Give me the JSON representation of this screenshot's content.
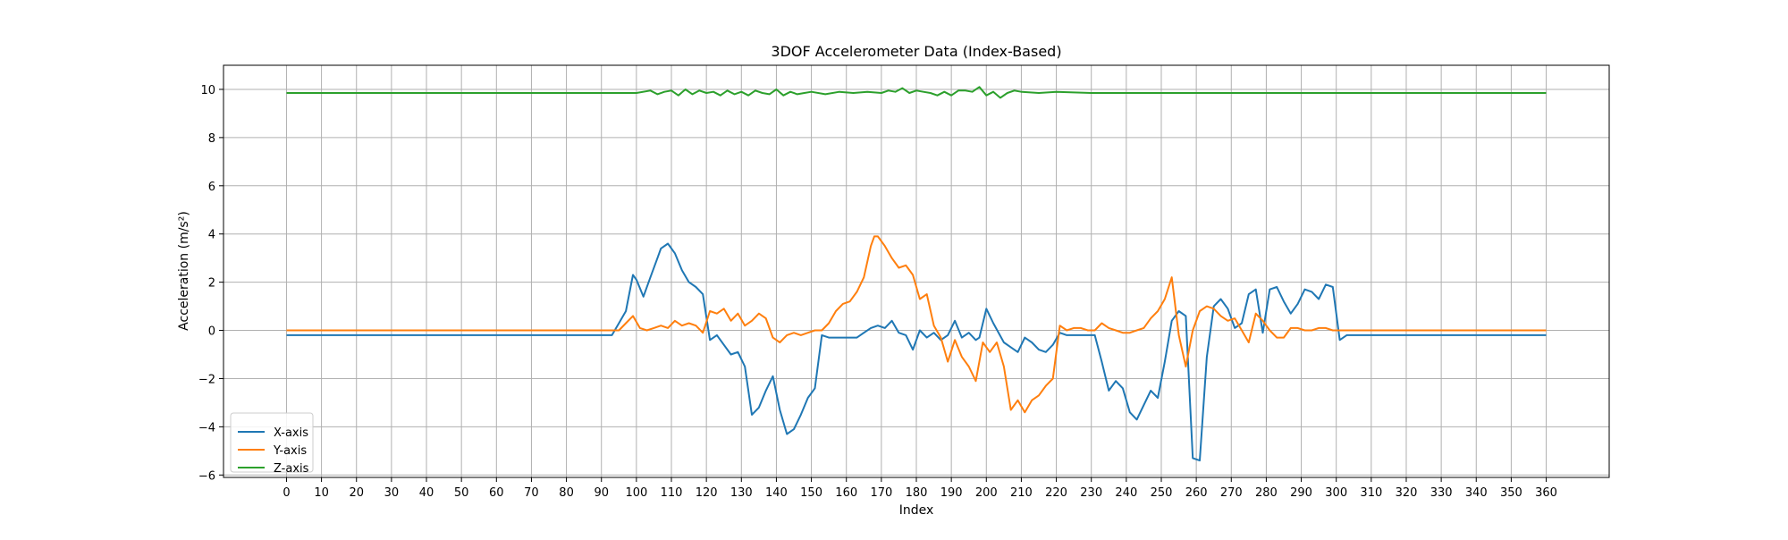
{
  "chart_data": {
    "type": "line",
    "title": "3DOF Accelerometer Data (Index-Based)",
    "xlabel": "Index",
    "ylabel": "Acceleration (m/s²)",
    "xlim": [
      -18,
      378
    ],
    "ylim": [
      -6.1,
      11.0
    ],
    "xticks": [
      0,
      10,
      20,
      30,
      40,
      50,
      60,
      70,
      80,
      90,
      100,
      110,
      120,
      130,
      140,
      150,
      160,
      170,
      180,
      190,
      200,
      210,
      220,
      230,
      240,
      250,
      260,
      270,
      280,
      290,
      300,
      310,
      320,
      330,
      340,
      350,
      360
    ],
    "yticks": [
      -6,
      -4,
      -2,
      0,
      2,
      4,
      6,
      8,
      10
    ],
    "grid": true,
    "legend_position": "lower-left",
    "series": [
      {
        "name": "X-axis",
        "color": "#1f77b4",
        "x": [
          0,
          5,
          10,
          15,
          20,
          25,
          30,
          35,
          40,
          45,
          50,
          55,
          60,
          65,
          70,
          75,
          80,
          85,
          90,
          93,
          95,
          97,
          99,
          100,
          102,
          104,
          106,
          107,
          109,
          111,
          113,
          115,
          117,
          119,
          121,
          123,
          125,
          127,
          129,
          131,
          133,
          135,
          137,
          139,
          141,
          143,
          145,
          147,
          149,
          151,
          153,
          155,
          157,
          160,
          163,
          165,
          167,
          169,
          171,
          173,
          175,
          177,
          179,
          181,
          183,
          185,
          187,
          189,
          191,
          193,
          195,
          197,
          198,
          200,
          202,
          205,
          207,
          209,
          211,
          213,
          215,
          217,
          219,
          221,
          223,
          225,
          227,
          229,
          231,
          233,
          235,
          237,
          239,
          241,
          243,
          245,
          247,
          249,
          251,
          253,
          255,
          257,
          259,
          261,
          263,
          265,
          267,
          269,
          271,
          273,
          275,
          277,
          279,
          281,
          283,
          285,
          287,
          289,
          291,
          293,
          295,
          297,
          299,
          301,
          303,
          305,
          310,
          320,
          330,
          340,
          350,
          360
        ],
        "y": [
          -0.2,
          -0.2,
          -0.2,
          -0.2,
          -0.2,
          -0.2,
          -0.2,
          -0.2,
          -0.2,
          -0.2,
          -0.2,
          -0.2,
          -0.2,
          -0.2,
          -0.2,
          -0.2,
          -0.2,
          -0.2,
          -0.2,
          -0.2,
          0.3,
          0.8,
          2.3,
          2.1,
          1.4,
          2.2,
          3.0,
          3.4,
          3.6,
          3.2,
          2.5,
          2.0,
          1.8,
          1.5,
          -0.4,
          -0.2,
          -0.6,
          -1.0,
          -0.9,
          -1.5,
          -3.5,
          -3.2,
          -2.5,
          -1.9,
          -3.3,
          -4.3,
          -4.1,
          -3.5,
          -2.8,
          -2.4,
          -0.2,
          -0.3,
          -0.3,
          -0.3,
          -0.3,
          -0.1,
          0.1,
          0.2,
          0.1,
          0.4,
          -0.1,
          -0.2,
          -0.8,
          0.0,
          -0.3,
          -0.1,
          -0.4,
          -0.2,
          0.4,
          -0.3,
          -0.1,
          -0.4,
          -0.3,
          0.9,
          0.3,
          -0.5,
          -0.7,
          -0.9,
          -0.3,
          -0.5,
          -0.8,
          -0.9,
          -0.6,
          -0.1,
          -0.2,
          -0.2,
          -0.2,
          -0.2,
          -0.2,
          -1.3,
          -2.5,
          -2.1,
          -2.4,
          -3.4,
          -3.7,
          -3.1,
          -2.5,
          -2.8,
          -1.3,
          0.4,
          0.8,
          0.6,
          -5.3,
          -5.4,
          -1.1,
          1.0,
          1.3,
          0.9,
          0.1,
          0.3,
          1.5,
          1.7,
          -0.1,
          1.7,
          1.8,
          1.2,
          0.7,
          1.1,
          1.7,
          1.6,
          1.3,
          1.9,
          1.8,
          -0.4,
          -0.2,
          -0.2,
          -0.2,
          -0.2,
          -0.2,
          -0.2,
          -0.2,
          -0.2
        ]
      },
      {
        "name": "Y-axis",
        "color": "#ff7f0e",
        "x": [
          0,
          10,
          20,
          30,
          40,
          50,
          60,
          70,
          80,
          90,
          95,
          97,
          99,
          101,
          103,
          105,
          107,
          109,
          111,
          113,
          115,
          117,
          119,
          121,
          123,
          125,
          127,
          129,
          131,
          133,
          135,
          137,
          139,
          141,
          143,
          145,
          147,
          149,
          151,
          153,
          155,
          157,
          159,
          161,
          163,
          165,
          167,
          168,
          169,
          171,
          173,
          175,
          177,
          179,
          181,
          183,
          185,
          187,
          189,
          191,
          193,
          195,
          197,
          199,
          201,
          203,
          205,
          207,
          209,
          211,
          213,
          215,
          217,
          219,
          221,
          223,
          225,
          227,
          229,
          231,
          233,
          235,
          237,
          239,
          241,
          243,
          245,
          247,
          249,
          251,
          253,
          255,
          257,
          259,
          261,
          263,
          265,
          267,
          269,
          271,
          273,
          275,
          277,
          279,
          281,
          283,
          285,
          287,
          289,
          291,
          293,
          295,
          297,
          299,
          301,
          310,
          320,
          330,
          340,
          350,
          360
        ],
        "y": [
          0.0,
          0.0,
          0.0,
          0.0,
          0.0,
          0.0,
          0.0,
          0.0,
          0.0,
          0.0,
          0.0,
          0.3,
          0.6,
          0.1,
          0.0,
          0.1,
          0.2,
          0.1,
          0.4,
          0.2,
          0.3,
          0.2,
          -0.1,
          0.8,
          0.7,
          0.9,
          0.4,
          0.7,
          0.2,
          0.4,
          0.7,
          0.5,
          -0.3,
          -0.5,
          -0.2,
          -0.1,
          -0.2,
          -0.1,
          0.0,
          0.0,
          0.3,
          0.8,
          1.1,
          1.2,
          1.6,
          2.2,
          3.5,
          3.9,
          3.9,
          3.5,
          3.0,
          2.6,
          2.7,
          2.3,
          1.3,
          1.5,
          0.2,
          -0.3,
          -1.3,
          -0.4,
          -1.1,
          -1.5,
          -2.1,
          -0.5,
          -0.9,
          -0.5,
          -1.5,
          -3.3,
          -2.9,
          -3.4,
          -2.9,
          -2.7,
          -2.3,
          -2.0,
          0.2,
          0.0,
          0.1,
          0.1,
          0.0,
          0.0,
          0.3,
          0.1,
          0.0,
          -0.1,
          -0.1,
          0.0,
          0.1,
          0.5,
          0.8,
          1.3,
          2.2,
          -0.2,
          -1.5,
          0.0,
          0.8,
          1.0,
          0.9,
          0.6,
          0.4,
          0.5,
          0.0,
          -0.5,
          0.7,
          0.4,
          0.0,
          -0.3,
          -0.3,
          0.1,
          0.1,
          0.0,
          0.0,
          0.1,
          0.1,
          0.0,
          0.0,
          0.0,
          0.0,
          0.0,
          0.0,
          0.0,
          0.0
        ]
      },
      {
        "name": "Z-axis",
        "color": "#2ca02c",
        "x": [
          0,
          20,
          40,
          60,
          80,
          90,
          100,
          104,
          106,
          108,
          110,
          112,
          114,
          116,
          118,
          120,
          122,
          124,
          126,
          128,
          130,
          132,
          134,
          136,
          138,
          140,
          142,
          144,
          146,
          148,
          150,
          154,
          158,
          162,
          166,
          170,
          172,
          174,
          176,
          178,
          180,
          182,
          184,
          186,
          188,
          190,
          192,
          194,
          196,
          198,
          200,
          202,
          204,
          206,
          208,
          210,
          215,
          220,
          230,
          240,
          250,
          260,
          270,
          280,
          290,
          300,
          320,
          340,
          360
        ],
        "y": [
          9.85,
          9.85,
          9.85,
          9.85,
          9.85,
          9.85,
          9.85,
          9.95,
          9.8,
          9.9,
          9.95,
          9.75,
          10.0,
          9.8,
          9.95,
          9.85,
          9.9,
          9.75,
          9.95,
          9.8,
          9.9,
          9.75,
          9.95,
          9.85,
          9.8,
          10.0,
          9.75,
          9.9,
          9.8,
          9.85,
          9.9,
          9.8,
          9.9,
          9.85,
          9.9,
          9.85,
          9.95,
          9.9,
          10.05,
          9.85,
          9.95,
          9.9,
          9.85,
          9.75,
          9.9,
          9.75,
          9.95,
          9.95,
          9.9,
          10.1,
          9.75,
          9.9,
          9.65,
          9.85,
          9.95,
          9.9,
          9.85,
          9.9,
          9.85,
          9.85,
          9.85,
          9.85,
          9.85,
          9.85,
          9.85,
          9.85,
          9.85,
          9.85,
          9.85
        ]
      }
    ]
  }
}
